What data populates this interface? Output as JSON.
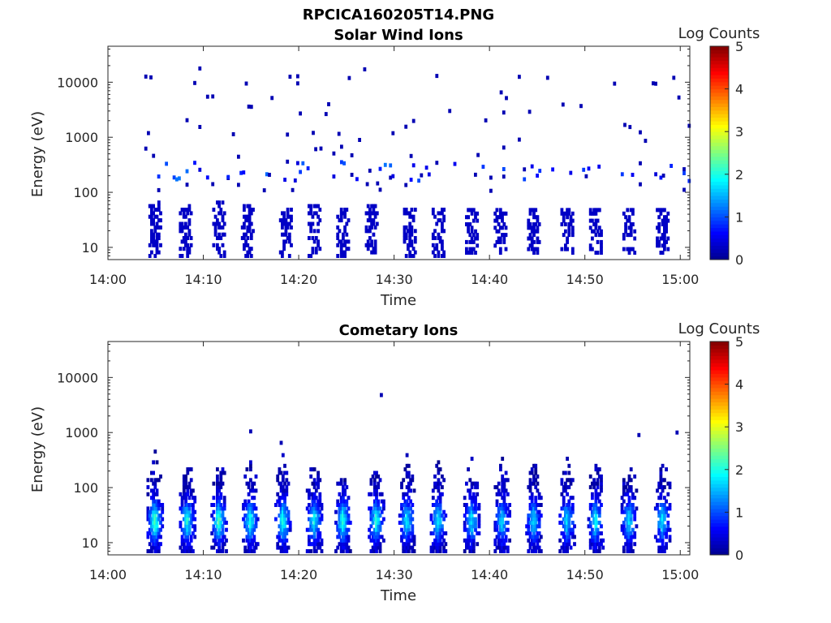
{
  "figure_title": "RPCICA160205T14.PNG",
  "colors": {
    "colormap": [
      "#00008f",
      "#0000ff",
      "#0080ff",
      "#00ffff",
      "#80ff80",
      "#ffff00",
      "#ff8000",
      "#ff0000",
      "#800000"
    ],
    "axis": "#262626"
  },
  "chart_data": [
    {
      "type": "heatmap",
      "title": "Solar Wind Ions",
      "xlabel": "Time",
      "ylabel": "Energy (eV)",
      "yscale": "log",
      "x_ticks": [
        "14:00",
        "14:10",
        "14:20",
        "14:30",
        "14:40",
        "14:50",
        "15:00"
      ],
      "y_ticks": [
        "10",
        "100",
        "1000",
        "10000"
      ],
      "xlim": [
        "14:00",
        "15:01"
      ],
      "ylim": [
        6,
        45000
      ],
      "colorbar": {
        "label": "Log Counts",
        "ticks": [
          "0",
          "1",
          "2",
          "3",
          "4",
          "5"
        ],
        "range": [
          0,
          5
        ]
      },
      "bursts": [
        {
          "t": "14:04.8",
          "low": [
            7,
            70
          ],
          "value": 0.3,
          "blobs": 6
        },
        {
          "t": "14:08.0",
          "low": [
            7,
            60
          ],
          "value": 0.3,
          "blobs": 6
        },
        {
          "t": "14:11.5",
          "low": [
            7,
            70
          ],
          "value": 0.3,
          "blobs": 6
        },
        {
          "t": "14:14.5",
          "low": [
            7,
            60
          ],
          "value": 0.3,
          "blobs": 5
        },
        {
          "t": "14:18.5",
          "low": [
            7,
            55
          ],
          "value": 0.3,
          "blobs": 5
        },
        {
          "t": "14:21.5",
          "low": [
            7,
            60
          ],
          "value": 0.3,
          "blobs": 5
        },
        {
          "t": "14:24.5",
          "low": [
            7,
            55
          ],
          "value": 0.3,
          "blobs": 5
        },
        {
          "t": "14:27.5",
          "low": [
            7,
            60
          ],
          "value": 0.3,
          "blobs": 5
        },
        {
          "t": "14:31.5",
          "low": [
            7,
            50
          ],
          "value": 0.3,
          "blobs": 4
        },
        {
          "t": "14:34.5",
          "low": [
            7,
            50
          ],
          "value": 0.3,
          "blobs": 4
        },
        {
          "t": "14:38.0",
          "low": [
            8,
            50
          ],
          "value": 0.3,
          "blobs": 4
        },
        {
          "t": "14:41.0",
          "low": [
            8,
            50
          ],
          "value": 0.3,
          "blobs": 4
        },
        {
          "t": "14:44.5",
          "low": [
            8,
            50
          ],
          "value": 0.3,
          "blobs": 4
        },
        {
          "t": "14:48.0",
          "low": [
            8,
            50
          ],
          "value": 0.3,
          "blobs": 4
        },
        {
          "t": "14:51.0",
          "low": [
            8,
            50
          ],
          "value": 0.3,
          "blobs": 4
        },
        {
          "t": "14:54.5",
          "low": [
            8,
            50
          ],
          "value": 0.3,
          "blobs": 4
        },
        {
          "t": "14:58.0",
          "low": [
            8,
            50
          ],
          "value": 0.3,
          "blobs": 4
        }
      ],
      "background": {
        "t_range": [
          "14:03",
          "15:01"
        ],
        "e_range": [
          100,
          20000
        ],
        "value": 0.2,
        "density": 0.18
      }
    },
    {
      "type": "heatmap",
      "title": "Cometary Ions",
      "xlabel": "Time",
      "ylabel": "Energy (eV)",
      "yscale": "log",
      "x_ticks": [
        "14:00",
        "14:10",
        "14:20",
        "14:30",
        "14:40",
        "14:50",
        "15:00"
      ],
      "y_ticks": [
        "10",
        "100",
        "1000",
        "10000"
      ],
      "xlim": [
        "14:00",
        "15:01"
      ],
      "ylim": [
        6,
        45000
      ],
      "colorbar": {
        "label": "Log Counts",
        "ticks": [
          "0",
          "1",
          "2",
          "3",
          "4",
          "5"
        ],
        "range": [
          0,
          5
        ]
      },
      "bursts": [
        {
          "t": "14:04.8",
          "peak": 2.0,
          "top": 500
        },
        {
          "t": "14:08.2",
          "peak": 1.8,
          "top": 400
        },
        {
          "t": "14:11.5",
          "peak": 2.0,
          "top": 500
        },
        {
          "t": "14:14.8",
          "peak": 1.7,
          "top": 400
        },
        {
          "t": "14:18.2",
          "peak": 1.8,
          "top": 500
        },
        {
          "t": "14:21.5",
          "peak": 1.7,
          "top": 400
        },
        {
          "t": "14:24.5",
          "peak": 1.8,
          "top": 300
        },
        {
          "t": "14:28.0",
          "peak": 1.8,
          "top": 350
        },
        {
          "t": "14:31.2",
          "peak": 1.6,
          "top": 400
        },
        {
          "t": "14:34.5",
          "peak": 1.6,
          "top": 350
        },
        {
          "t": "14:38.0",
          "peak": 1.5,
          "top": 400
        },
        {
          "t": "14:41.2",
          "peak": 1.5,
          "top": 350
        },
        {
          "t": "14:44.5",
          "peak": 1.5,
          "top": 350
        },
        {
          "t": "14:48.0",
          "peak": 1.5,
          "top": 350
        },
        {
          "t": "14:51.0",
          "peak": 1.7,
          "top": 400
        },
        {
          "t": "14:54.5",
          "peak": 1.5,
          "top": 400
        },
        {
          "t": "14:58.0",
          "peak": 1.6,
          "top": 400
        }
      ]
    }
  ]
}
